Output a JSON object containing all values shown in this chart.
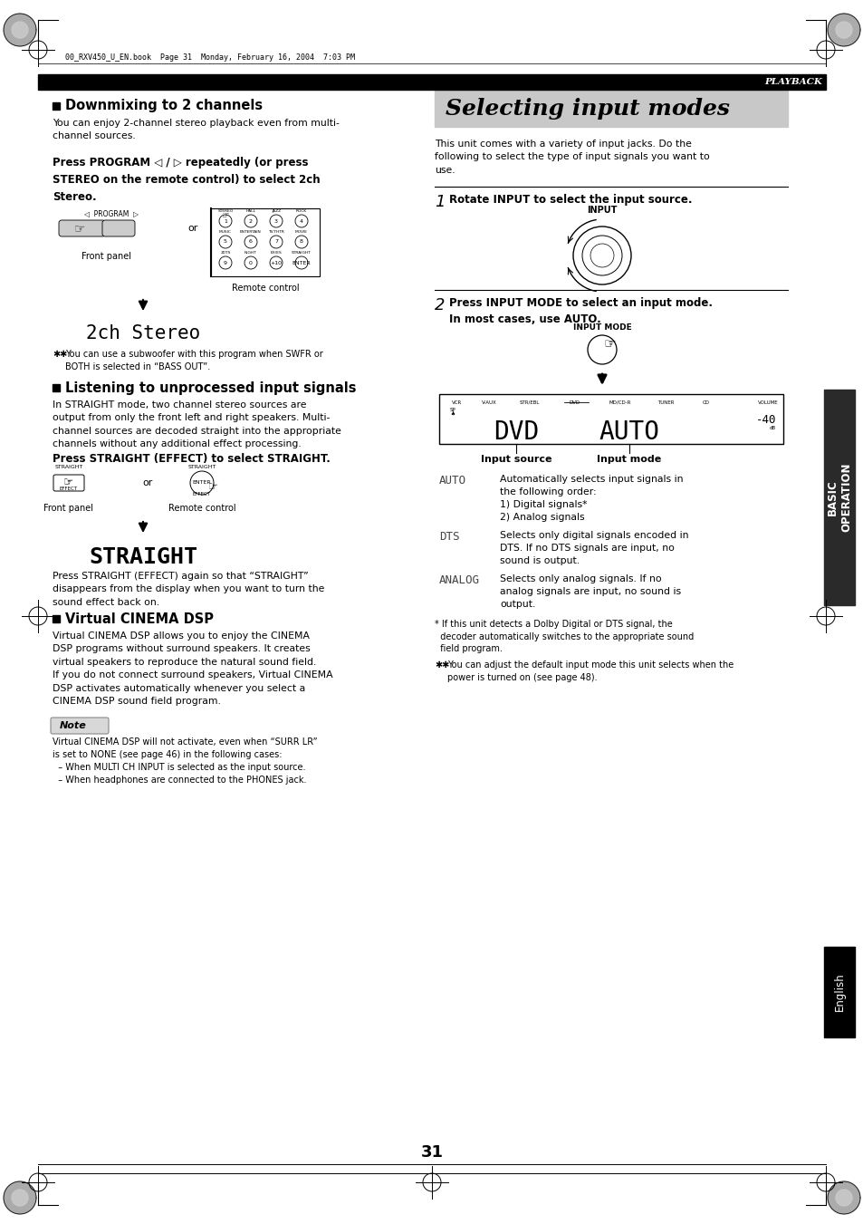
{
  "page_bg": "#ffffff",
  "header_file_text": "00_RXV450_U_EN.book  Page 31  Monday, February 16, 2004  7:03 PM",
  "top_bar_text": "PLAYBACK",
  "section_title_left_1": "Downmixing to 2 channels",
  "section_body_left_1a": "You can enjoy 2-channel stereo playback even from multi-\nchannel sources.",
  "section_bold_left_1": "Press PROGRAM ◁ / ▷ repeatedly (or press\nSTEREO on the remote control) to select 2ch\nStereo.",
  "display_2ch": "2ch Stereo",
  "tip_text_1": "You can use a subwoofer with this program when SWFR or\nBOTH is selected in “BASS OUT”.",
  "section_title_left_2": "Listening to unprocessed input signals",
  "section_body_left_2": "In STRAIGHT mode, two channel stereo sources are\noutput from only the front left and right speakers. Multi-\nchannel sources are decoded straight into the appropriate\nchannels without any additional effect processing.",
  "section_bold_left_2": "Press STRAIGHT (EFFECT) to select STRAIGHT.",
  "display_straight": "STRAIGHT",
  "body_straight_after": "Press STRAIGHT (EFFECT) again so that “STRAIGHT”\ndisappears from the display when you want to turn the\nsound effect back on.",
  "section_title_left_3": "Virtual CINEMA DSP",
  "section_body_left_3": "Virtual CINEMA DSP allows you to enjoy the CINEMA\nDSP programs without surround speakers. It creates\nvirtual speakers to reproduce the natural sound field.\nIf you do not connect surround speakers, Virtual CINEMA\nDSP activates automatically whenever you select a\nCINEMA DSP sound field program.",
  "note_label": "Note",
  "note_body": "Virtual CINEMA DSP will not activate, even when “SURR LR”\nis set to NONE (see page 46) in the following cases:\n  – When MULTI CH INPUT is selected as the input source.\n  – When headphones are connected to the PHONES jack.",
  "right_section_title": "Selecting input modes",
  "right_section_title_bg": "#cccccc",
  "right_intro": "This unit comes with a variety of input jacks. Do the\nfollowing to select the type of input signals you want to\nuse.",
  "step1_text": "Rotate INPUT to select the input source.",
  "step2_text": "Press INPUT MODE to select an input mode.\nIn most cases, use AUTO.",
  "input_source_label": "Input source",
  "input_mode_label": "Input mode",
  "auto_label": "AUTO",
  "auto_desc": "Automatically selects input signals in\nthe following order:\n1) Digital signals*\n2) Analog signals",
  "dts_label": "DTS",
  "dts_desc": "Selects only digital signals encoded in\nDTS. If no DTS signals are input, no\nsound is output.",
  "analog_label": "ANALOG",
  "analog_desc": "Selects only analog signals. If no\nanalog signals are input, no sound is\noutput.",
  "footnote": "* If this unit detects a Dolby Digital or DTS signal, the\n  decoder automatically switches to the appropriate sound\n  field program.",
  "tip_text_2": "You can adjust the default input mode this unit selects when the\npower is turned on (see page 48).",
  "sidebar_text": "BASIC\nOPERATION",
  "sidebar_bg": "#2a2a2a",
  "sidebar_text_color": "#ffffff",
  "english_sidebar_text": "English",
  "english_sidebar_bg": "#000000",
  "page_number": "31",
  "text_color": "#000000",
  "body_font": 7.8,
  "small_font": 7.0,
  "bold_font": 8.5,
  "section_title_font": 10.5,
  "display_font": 15.0,
  "straight_font": 18.0
}
